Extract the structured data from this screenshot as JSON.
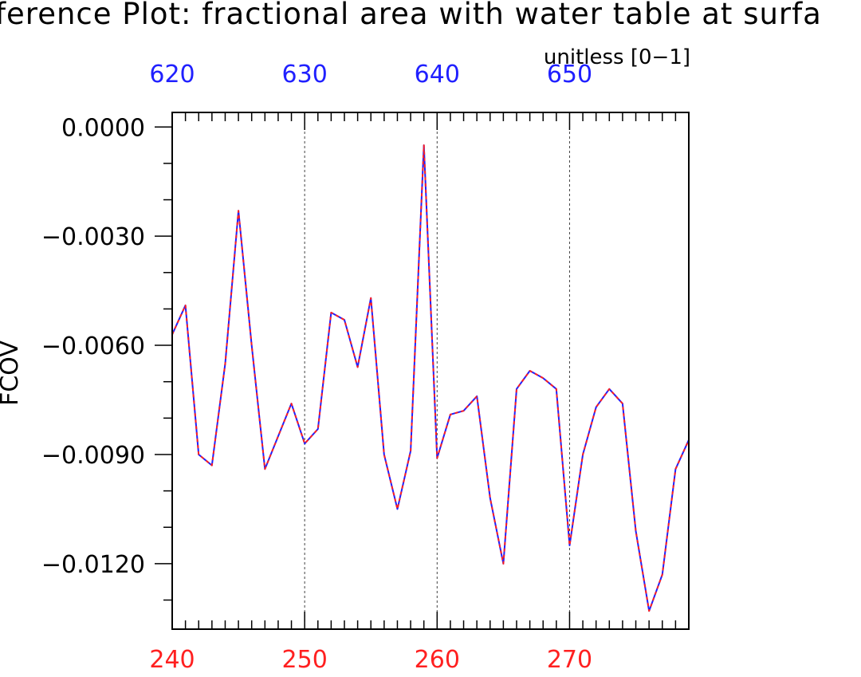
{
  "chart_data": {
    "type": "line",
    "title": "ference Plot: fractional area with water table at surfa",
    "units_label": "unitless [0−1]",
    "ylabel": "FCOV",
    "xlabel": "",
    "bottom_axis": {
      "range": [
        240,
        279
      ],
      "tick_labels": [
        "240",
        "250",
        "260",
        "270"
      ],
      "tick_values": [
        240,
        250,
        260,
        270
      ],
      "label_color": "#ff2020"
    },
    "top_axis": {
      "range": [
        620,
        659
      ],
      "tick_labels": [
        "620",
        "630",
        "640",
        "650"
      ],
      "tick_values": [
        620,
        630,
        640,
        650
      ],
      "label_color": "#2020ff"
    },
    "ylim": [
      -0.0138,
      0.0
    ],
    "y_ticks": [
      0.0,
      -0.003,
      -0.006,
      -0.009,
      -0.012
    ],
    "y_tick_labels": [
      "0.0000",
      "−0.0030",
      "−0.0060",
      "−0.0090",
      "−0.0120"
    ],
    "grid": "vertical dashed at labeled x ticks",
    "series": [
      {
        "color": "#2020ff",
        "style": "solid",
        "x": [
          240,
          241,
          242,
          243,
          244,
          245,
          246,
          247,
          248,
          249,
          250,
          251,
          252,
          253,
          254,
          255,
          256,
          257,
          258,
          259,
          260,
          261,
          262,
          263,
          264,
          265,
          266,
          267,
          268,
          269,
          270,
          271,
          272,
          273,
          274,
          275,
          276,
          277,
          278,
          279
        ],
        "values": [
          -0.0057,
          -0.0049,
          -0.009,
          -0.0093,
          -0.0065,
          -0.0023,
          -0.006,
          -0.0094,
          -0.0085,
          -0.0076,
          -0.0087,
          -0.0083,
          -0.0051,
          -0.0053,
          -0.0066,
          -0.0047,
          -0.009,
          -0.0105,
          -0.0089,
          -0.0005,
          -0.0091,
          -0.0079,
          -0.0078,
          -0.0074,
          -0.0102,
          -0.012,
          -0.0072,
          -0.0067,
          -0.0069,
          -0.0072,
          -0.0115,
          -0.009,
          -0.0077,
          -0.0072,
          -0.0076,
          -0.0111,
          -0.0133,
          -0.0123,
          -0.0094,
          -0.0086
        ]
      },
      {
        "color": "#ff2020",
        "style": "dashed",
        "x": [
          240,
          241,
          242,
          243,
          244,
          245,
          246,
          247,
          248,
          249,
          250,
          251,
          252,
          253,
          254,
          255,
          256,
          257,
          258,
          259,
          260,
          261,
          262,
          263,
          264,
          265,
          266,
          267,
          268,
          269,
          270,
          271,
          272,
          273,
          274,
          275,
          276,
          277,
          278,
          279
        ],
        "values": [
          -0.0057,
          -0.0049,
          -0.009,
          -0.0093,
          -0.0065,
          -0.0023,
          -0.006,
          -0.0094,
          -0.0085,
          -0.0076,
          -0.0087,
          -0.0083,
          -0.0051,
          -0.0053,
          -0.0066,
          -0.0047,
          -0.009,
          -0.0105,
          -0.0089,
          -0.0005,
          -0.0091,
          -0.0079,
          -0.0078,
          -0.0074,
          -0.0102,
          -0.012,
          -0.0072,
          -0.0067,
          -0.0069,
          -0.0072,
          -0.0115,
          -0.009,
          -0.0077,
          -0.0072,
          -0.0076,
          -0.0111,
          -0.0133,
          -0.0123,
          -0.0094,
          -0.0086
        ]
      }
    ]
  }
}
